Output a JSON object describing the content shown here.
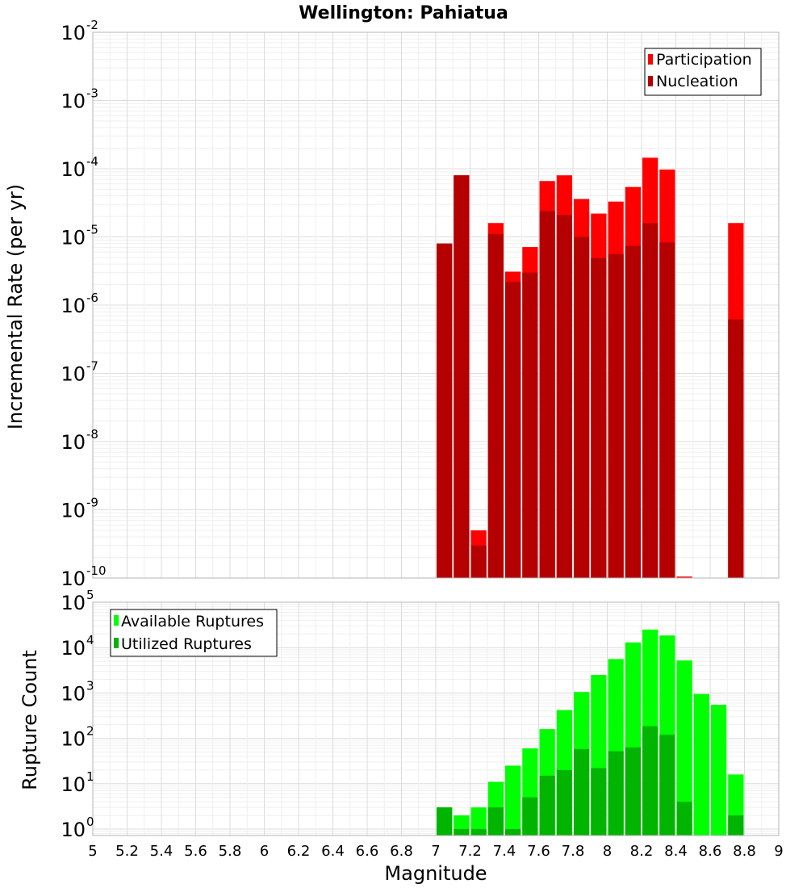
{
  "title": "Wellington: Pahiatua",
  "xlabel": "Magnitude",
  "x_ticks": [
    "5",
    "5.2",
    "5.4",
    "5.6",
    "5.8",
    "6",
    "6.2",
    "6.4",
    "6.6",
    "6.8",
    "7",
    "7.2",
    "7.4",
    "7.6",
    "7.8",
    "8",
    "8.2",
    "8.4",
    "8.6",
    "8.8",
    "9"
  ],
  "chart_data": [
    {
      "type": "bar",
      "title": "Wellington: Pahiatua",
      "xlabel": "",
      "ylabel": "Incremental Rate (per yr)",
      "log_y": true,
      "ylim": [
        1e-10,
        0.01
      ],
      "xlim": [
        5,
        9
      ],
      "bin_width": 0.1,
      "grid": true,
      "legend_position": "top-right",
      "y_ticks": [
        {
          "base": "10",
          "exp": "-2"
        },
        {
          "base": "10",
          "exp": "-3"
        },
        {
          "base": "10",
          "exp": "-4"
        },
        {
          "base": "10",
          "exp": "-5"
        },
        {
          "base": "10",
          "exp": "-6"
        },
        {
          "base": "10",
          "exp": "-7"
        },
        {
          "base": "10",
          "exp": "-8"
        },
        {
          "base": "10",
          "exp": "-9"
        },
        {
          "base": "10",
          "exp": "-10"
        }
      ],
      "x": [
        7.05,
        7.15,
        7.25,
        7.35,
        7.45,
        7.55,
        7.65,
        7.75,
        7.85,
        7.95,
        8.05,
        8.15,
        8.25,
        8.35,
        8.45,
        8.55,
        8.65,
        8.75
      ],
      "series": [
        {
          "name": "Participation",
          "color": "#ff0000",
          "values": [
            8e-06,
            8e-05,
            5e-10,
            1.6e-05,
            3.1e-06,
            7.1e-06,
            6.6e-05,
            8e-05,
            3.6e-05,
            2.2e-05,
            3.3e-05,
            5.4e-05,
            0.000145,
            9.7e-05,
            1.05e-10,
            0,
            0,
            1.6e-05
          ]
        },
        {
          "name": "Nucleation",
          "color": "#b40000",
          "values": [
            8e-06,
            8e-05,
            3e-10,
            1.1e-05,
            2.2e-06,
            3e-06,
            2.4e-05,
            2.1e-05,
            1e-05,
            4.9e-06,
            5.6e-06,
            7.4e-06,
            1.6e-05,
            8.3e-06,
            0,
            0,
            0,
            6.2e-07
          ]
        }
      ]
    },
    {
      "type": "bar",
      "title": "",
      "xlabel": "Magnitude",
      "ylabel": "Rupture Count",
      "log_y": true,
      "ylim": [
        0.72,
        100000.0
      ],
      "xlim": [
        5,
        9
      ],
      "bin_width": 0.1,
      "grid": true,
      "legend_position": "top-left",
      "y_ticks": [
        {
          "base": "10",
          "exp": "5"
        },
        {
          "base": "10",
          "exp": "4"
        },
        {
          "base": "10",
          "exp": "3"
        },
        {
          "base": "10",
          "exp": "2"
        },
        {
          "base": "10",
          "exp": "1"
        },
        {
          "base": "10",
          "exp": "0"
        }
      ],
      "x": [
        7.05,
        7.15,
        7.25,
        7.35,
        7.45,
        7.55,
        7.65,
        7.75,
        7.85,
        7.95,
        8.05,
        8.15,
        8.25,
        8.35,
        8.45,
        8.55,
        8.65,
        8.75
      ],
      "series": [
        {
          "name": "Available Ruptures",
          "color": "#00ff00",
          "values": [
            3,
            2,
            3,
            11,
            25,
            60,
            160,
            420,
            1050,
            2500,
            5600,
            13000,
            25000,
            18500,
            5200,
            950,
            550,
            16
          ]
        },
        {
          "name": "Utilized Ruptures",
          "color": "#00b400",
          "values": [
            3,
            1,
            1,
            3,
            1,
            5,
            15,
            20,
            58,
            22,
            52,
            63,
            185,
            120,
            4,
            0,
            0,
            2
          ]
        }
      ]
    }
  ]
}
